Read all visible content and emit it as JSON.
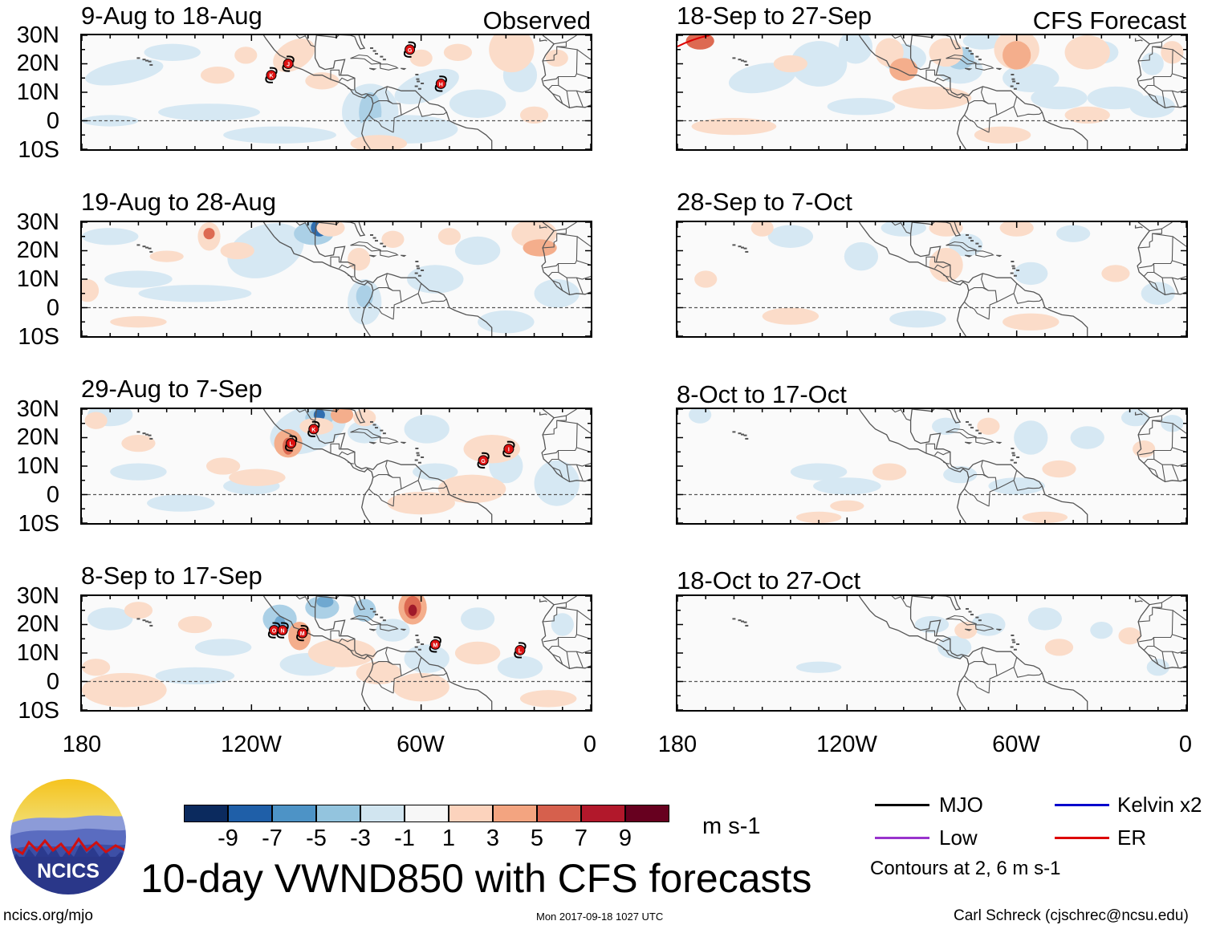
{
  "figure": {
    "title": "10-day VWND850 with CFS forecasts",
    "units": "m s-1",
    "contours_note": "Contours at 2, 6 m s-1",
    "site": "ncics.org/mjo",
    "timestamp": "Mon 2017-09-18 1027 UTC",
    "author": "Carl Schreck (cjschrec@ncsu.edu)",
    "logo_text": "NCICS"
  },
  "columns": {
    "observed_label": "Observed",
    "forecast_label": "CFS Forecast"
  },
  "panels": [
    {
      "period": "9-Aug to 18-Aug",
      "source": "Observed"
    },
    {
      "period": "19-Aug to 28-Aug",
      "source": "Observed"
    },
    {
      "period": "29-Aug to 7-Sep",
      "source": "Observed"
    },
    {
      "period": "8-Sep to 17-Sep",
      "source": "Observed"
    },
    {
      "period": "18-Sep to 27-Sep",
      "source": "CFS Forecast"
    },
    {
      "period": "28-Sep to 7-Oct",
      "source": "CFS Forecast"
    },
    {
      "period": "8-Oct to 17-Oct",
      "source": "CFS Forecast"
    },
    {
      "period": "18-Oct to 27-Oct",
      "source": "CFS Forecast"
    }
  ],
  "axes": {
    "lat_labels": [
      "30N",
      "20N",
      "10N",
      "0",
      "10S"
    ],
    "lon_labels": [
      "180",
      "120W",
      "60W",
      "0"
    ]
  },
  "colorbar": {
    "colors": [
      "#0b2a5e",
      "#1f5fa8",
      "#4d93c6",
      "#93c4de",
      "#d1e5f0",
      "#f7f7f7",
      "#fcd3bd",
      "#f3a480",
      "#d6604d",
      "#b2182b",
      "#67001f"
    ],
    "tick_labels": [
      "-9",
      "-7",
      "-5",
      "-3",
      "-1",
      "1",
      "3",
      "5",
      "7",
      "9"
    ]
  },
  "legend": [
    {
      "label": "MJO",
      "color": "#000000"
    },
    {
      "label": "Kelvin x2",
      "color": "#0000cc"
    },
    {
      "label": "Low",
      "color": "#9933cc"
    },
    {
      "label": "ER",
      "color": "#dd0000"
    }
  ],
  "storms": [
    {
      "panel": 0,
      "letter": "K"
    },
    {
      "panel": 0,
      "letter": "J"
    },
    {
      "panel": 0,
      "letter": "G"
    },
    {
      "panel": 0,
      "letter": "H"
    },
    {
      "panel": 2,
      "letter": "L"
    },
    {
      "panel": 2,
      "letter": "K"
    },
    {
      "panel": 2,
      "letter": "G"
    },
    {
      "panel": 2,
      "letter": "I"
    },
    {
      "panel": 3,
      "letter": "O"
    },
    {
      "panel": 3,
      "letter": "N"
    },
    {
      "panel": 3,
      "letter": "M"
    },
    {
      "panel": 3,
      "letter": "M"
    },
    {
      "panel": 3,
      "letter": "L"
    }
  ]
}
